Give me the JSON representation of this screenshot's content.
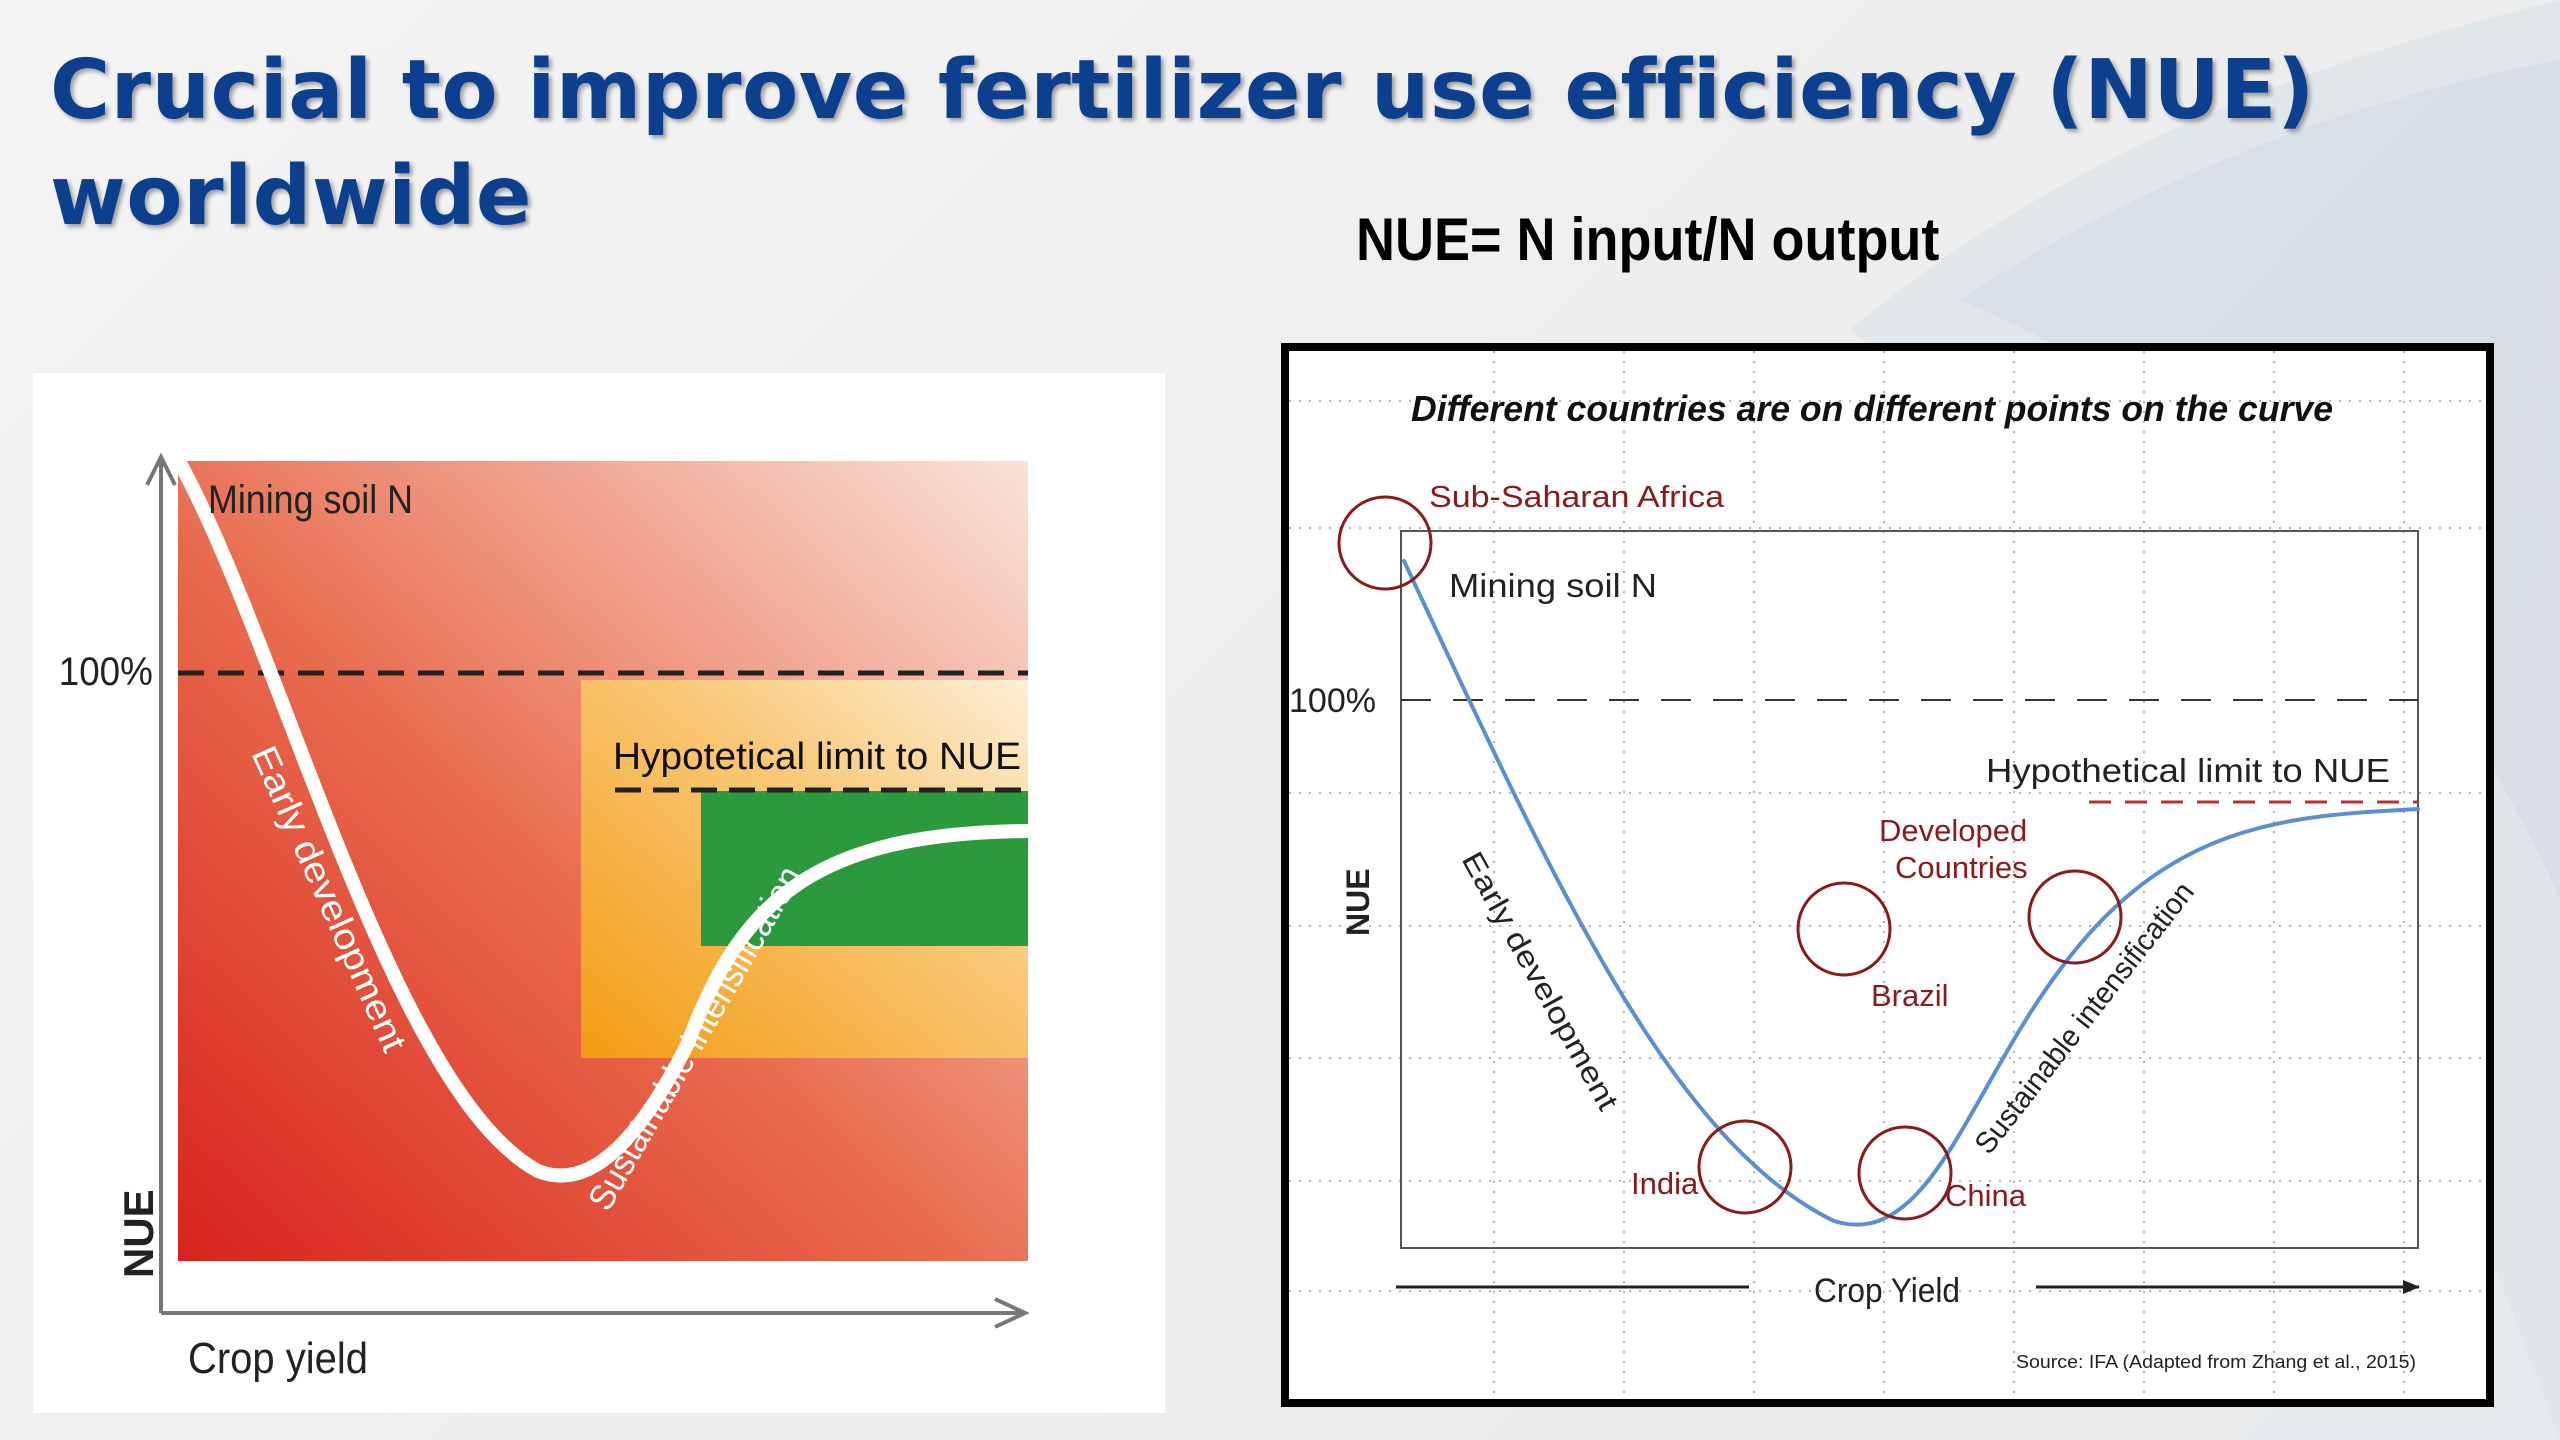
{
  "title": {
    "line1": "Crucial to improve fertilizer use efficiency (NUE)",
    "line2": "worldwide"
  },
  "formula": "NUE= N input/N output",
  "left_chart": {
    "y_axis_label": "NUE",
    "x_axis_label": "Crop yield",
    "hundred_percent_label": "100%",
    "mining_label": "Mining soil N",
    "limit_label": "Hypotetical limit to NUE",
    "early_label": "Early development",
    "sustainable_label": "Sustainable intensification"
  },
  "right_chart": {
    "heading": "Different countries are on different points on the curve",
    "y_axis_label": "NUE",
    "x_axis_label": "Crop Yield",
    "hundred_percent_label": "100%",
    "mining_label": "Mining soil N",
    "limit_label": "Hypothetical limit to NUE",
    "early_label": "Early development",
    "sustainable_label": "Sustainable intensification",
    "source": "Source: IFA (Adapted from Zhang et al., 2015)",
    "regions": [
      {
        "name": "Sub-Saharan Africa"
      },
      {
        "name": "India"
      },
      {
        "name": "China"
      },
      {
        "name": "Brazil"
      },
      {
        "name": "Developed"
      },
      {
        "name": "Countries"
      }
    ]
  },
  "colors": {
    "title": "#0d3f8f",
    "curve_right": "#5a8fd0",
    "circle": "#8b1a1a",
    "limit_dash": "#c03030",
    "green_zone": "#2a9a3c"
  }
}
